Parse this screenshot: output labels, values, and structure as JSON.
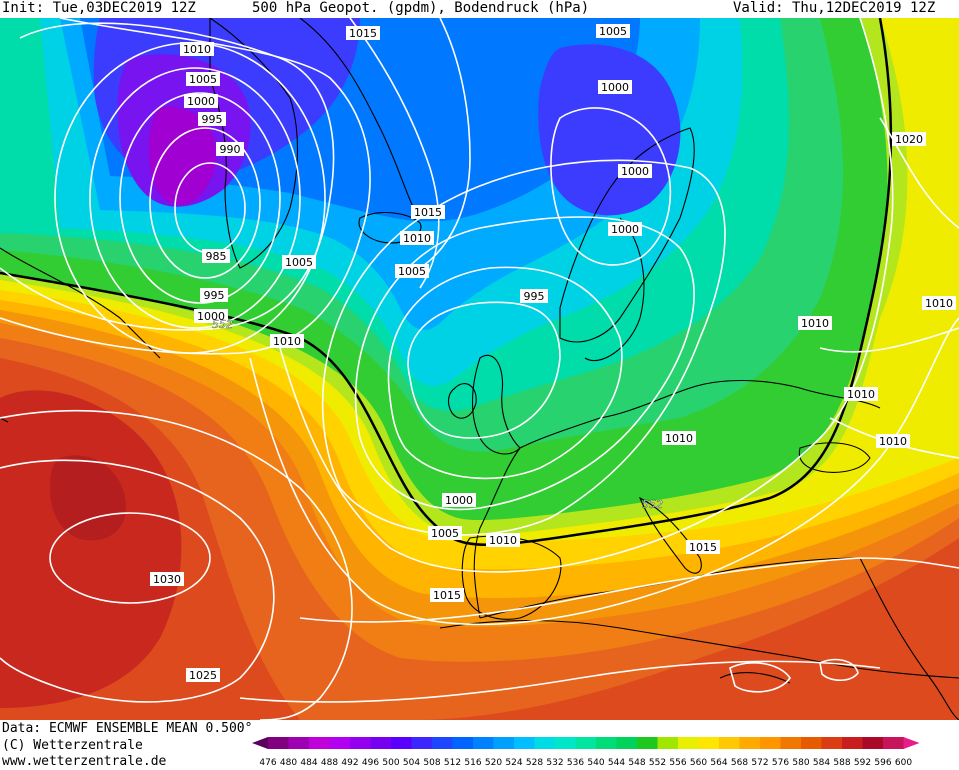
{
  "header": {
    "init": "Init: Tue,03DEC2019  12Z",
    "title": "500 hPa Geopot. (gpdm), Bodendruck (hPa)",
    "valid": "Valid: Thu,12DEC2019  12Z"
  },
  "footer": {
    "data_line": "Data: ECMWF ENSEMBLE MEAN 0.500°",
    "copyright": "(C) Wetterzentrale",
    "website": "www.wetterzentrale.de"
  },
  "legend": {
    "values": [
      "476",
      "480",
      "484",
      "488",
      "492",
      "496",
      "500",
      "504",
      "508",
      "512",
      "516",
      "520",
      "524",
      "528",
      "532",
      "536",
      "540",
      "544",
      "548",
      "552",
      "556",
      "560",
      "564",
      "568",
      "572",
      "576",
      "580",
      "584",
      "588",
      "592",
      "596",
      "600"
    ],
    "colors": [
      "#5a005a",
      "#800080",
      "#a000b4",
      "#c000d8",
      "#b400f0",
      "#9600f0",
      "#7800f0",
      "#5a00ff",
      "#3c28ff",
      "#1e46ff",
      "#0064ff",
      "#0082ff",
      "#00a0ff",
      "#00beff",
      "#00dce6",
      "#00e6c8",
      "#00e6a0",
      "#00dc78",
      "#00d25a",
      "#1ec81e",
      "#a0e600",
      "#e6f000",
      "#ffe600",
      "#ffc800",
      "#ffaa00",
      "#ff9600",
      "#f07800",
      "#e65a00",
      "#dc3c14",
      "#c81e1e",
      "#aa0a28",
      "#c8145a",
      "#e61e8c"
    ]
  },
  "contours": {
    "isobars": [
      "1015",
      "1010",
      "1005",
      "1000",
      "995",
      "990",
      "985",
      "1005",
      "995",
      "1000",
      "1010",
      "1005",
      "1015",
      "1010",
      "1005",
      "1000",
      "1000",
      "1000",
      "995",
      "1010",
      "1010",
      "1010",
      "1010",
      "1020",
      "1010",
      "1000",
      "1005",
      "1010",
      "1015",
      "1015",
      "1030",
      "1025"
    ],
    "geopotential": [
      "552",
      "552"
    ]
  },
  "colors": {
    "land_outline": "#000000",
    "isobar": "#ffffff",
    "geopot_552": "#000000"
  }
}
